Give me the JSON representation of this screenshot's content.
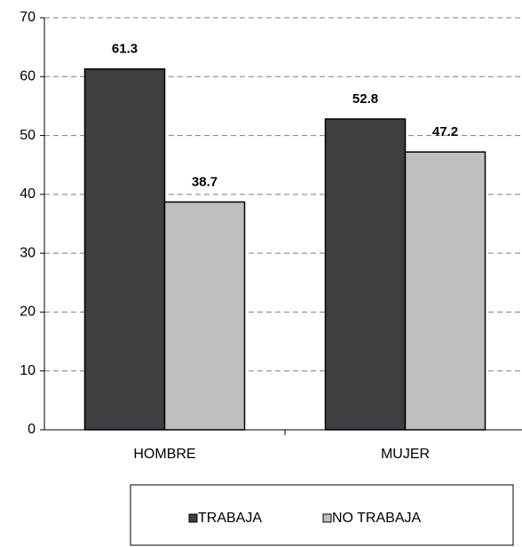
{
  "chart_data": {
    "type": "bar",
    "categories": [
      "HOMBRE",
      "MUJER"
    ],
    "series": [
      {
        "name": "TRABAJA",
        "color": "#3d3f42",
        "values": [
          61.3,
          52.8
        ]
      },
      {
        "name": "NO TRABAJA",
        "color": "#bfbfbf",
        "values": [
          38.7,
          47.2
        ]
      }
    ],
    "ylim": [
      0,
      70
    ],
    "yticks": [
      0,
      10,
      20,
      30,
      40,
      50,
      60,
      70
    ],
    "grid": true,
    "legend": "bottom"
  }
}
